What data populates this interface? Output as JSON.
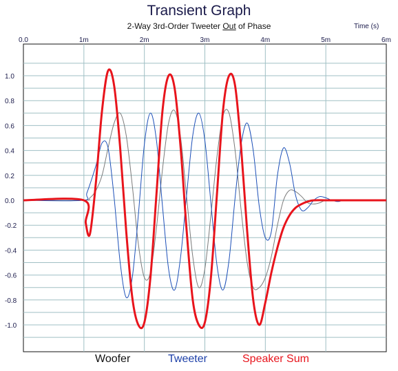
{
  "chart_data": {
    "type": "line",
    "title": "Transient Graph",
    "subtitle_parts": [
      "2-Way 3rd-Order Tweeter ",
      "Out",
      " of Phase"
    ],
    "xlabel": "Time  (s)",
    "x_ticks": [
      "0.0",
      "1m",
      "2m",
      "3m",
      "4m",
      "5m",
      "6m"
    ],
    "y_ticks": [
      "1.0",
      "0.8",
      "0.6",
      "0.4",
      "0.2",
      "0.0",
      "-0.2",
      "-0.4",
      "-0.6",
      "-0.8",
      "-1.0"
    ],
    "xlim": [
      0,
      0.006
    ],
    "ylim": [
      -1.2,
      1.2
    ],
    "grid": true,
    "series": [
      {
        "name": "Woofer",
        "color": "#7a7a7a",
        "x": [
          0,
          0.00098,
          0.0011,
          0.0012,
          0.0013,
          0.0014,
          0.0015,
          0.0016,
          0.0017,
          0.0018,
          0.0019,
          0.002,
          0.0021,
          0.0022,
          0.0023,
          0.0024,
          0.0025,
          0.0026,
          0.0027,
          0.0028,
          0.0029,
          0.003,
          0.0031,
          0.0032,
          0.0033,
          0.0034,
          0.0035,
          0.0036,
          0.0037,
          0.0038,
          0.0039,
          0.004,
          0.0041,
          0.0042,
          0.0043,
          0.0044,
          0.0045,
          0.0046,
          0.0047,
          0.0048,
          0.0049,
          0.005,
          0.0052,
          0.0054,
          0.006
        ],
        "y": [
          0,
          0,
          0.02,
          0.08,
          0.2,
          0.42,
          0.62,
          0.7,
          0.52,
          0.12,
          -0.35,
          -0.62,
          -0.58,
          -0.22,
          0.25,
          0.62,
          0.72,
          0.5,
          0.02,
          -0.45,
          -0.7,
          -0.55,
          -0.12,
          0.35,
          0.68,
          0.7,
          0.4,
          -0.08,
          -0.5,
          -0.7,
          -0.7,
          -0.62,
          -0.45,
          -0.2,
          0.0,
          0.08,
          0.07,
          0.03,
          -0.02,
          -0.03,
          -0.02,
          0.0,
          0.0,
          0.0,
          0.0
        ]
      },
      {
        "name": "Tweeter",
        "color": "#1c4fb8",
        "x": [
          0,
          0.00098,
          0.00105,
          0.0012,
          0.0013,
          0.0014,
          0.0015,
          0.0016,
          0.0017,
          0.0018,
          0.0019,
          0.002,
          0.0021,
          0.0022,
          0.0023,
          0.0024,
          0.0025,
          0.0026,
          0.0027,
          0.0028,
          0.0029,
          0.003,
          0.0031,
          0.0032,
          0.0033,
          0.0034,
          0.0035,
          0.0036,
          0.0037,
          0.0038,
          0.0039,
          0.004,
          0.0041,
          0.0042,
          0.0043,
          0.0044,
          0.0045,
          0.0046,
          0.0047,
          0.0048,
          0.0049,
          0.005,
          0.0051,
          0.0052,
          0.0053,
          0.0054,
          0.006
        ],
        "y": [
          0,
          0,
          0.06,
          0.28,
          0.46,
          0.42,
          0.02,
          -0.5,
          -0.78,
          -0.62,
          -0.12,
          0.45,
          0.7,
          0.48,
          -0.05,
          -0.55,
          -0.72,
          -0.45,
          0.05,
          0.52,
          0.7,
          0.48,
          -0.02,
          -0.52,
          -0.72,
          -0.48,
          0.02,
          0.45,
          0.62,
          0.4,
          -0.05,
          -0.3,
          -0.25,
          0.2,
          0.42,
          0.3,
          0.04,
          -0.08,
          -0.06,
          0.0,
          0.03,
          0.02,
          0.0,
          -0.01,
          0.0,
          0.0,
          0.0
        ]
      },
      {
        "name": "Speaker Sum",
        "color": "#e8141c",
        "x": [
          0,
          0.001,
          0.00103,
          0.0011,
          0.0012,
          0.0013,
          0.0014,
          0.0015,
          0.0016,
          0.0017,
          0.0018,
          0.0019,
          0.002,
          0.0021,
          0.0022,
          0.0023,
          0.0024,
          0.0025,
          0.0026,
          0.0027,
          0.0028,
          0.0029,
          0.003,
          0.0031,
          0.0032,
          0.0033,
          0.0034,
          0.0035,
          0.0036,
          0.0037,
          0.0038,
          0.0039,
          0.004,
          0.0041,
          0.0042,
          0.0043,
          0.0044,
          0.0045,
          0.0046,
          0.0047,
          0.0048,
          0.005,
          0.0052,
          0.006
        ],
        "y": [
          0,
          0,
          -0.18,
          -0.27,
          0.15,
          0.72,
          1.04,
          0.92,
          0.42,
          -0.25,
          -0.78,
          -1.0,
          -0.98,
          -0.62,
          0.05,
          0.72,
          1.0,
          0.9,
          0.42,
          -0.25,
          -0.8,
          -1.0,
          -0.98,
          -0.62,
          0.05,
          0.72,
          1.0,
          0.92,
          0.42,
          -0.25,
          -0.8,
          -1.0,
          -0.82,
          -0.58,
          -0.38,
          -0.22,
          -0.12,
          -0.06,
          -0.03,
          -0.01,
          0.0,
          0.0,
          0.0,
          0.0
        ]
      }
    ]
  }
}
